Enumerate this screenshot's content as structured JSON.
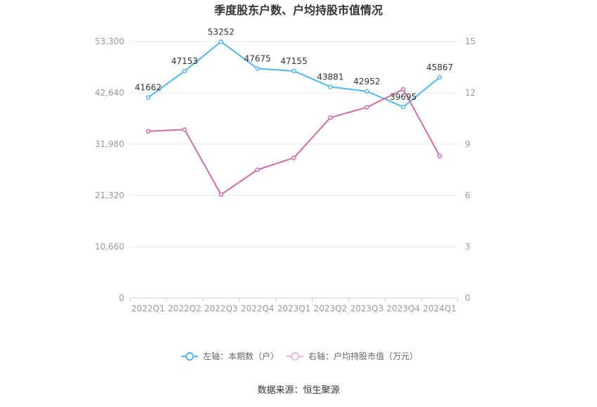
{
  "chart_data": {
    "type": "line",
    "title": "季度股东户数、户均持股市值情况",
    "categories": [
      "2022Q1",
      "2022Q2",
      "2022Q3",
      "2022Q4",
      "2023Q1",
      "2023Q2",
      "2023Q3",
      "2023Q4",
      "2024Q1"
    ],
    "left_axis": {
      "ylim": [
        0,
        53300
      ],
      "ticks": [
        0,
        10660,
        21320,
        31980,
        42640,
        53300
      ],
      "tick_labels": [
        "0",
        "10,660",
        "21,320",
        "31,980",
        "42,640",
        "53,300"
      ]
    },
    "right_axis": {
      "ylim": [
        0,
        15
      ],
      "ticks": [
        0,
        3,
        6,
        9,
        12,
        15
      ],
      "tick_labels": [
        "0",
        "3",
        "6",
        "9",
        "12",
        "15"
      ]
    },
    "series": [
      {
        "name": "左轴：本期数（户）",
        "axis": "left",
        "color": "#4fb8ec",
        "values": [
          41662,
          47153,
          53252,
          47675,
          47155,
          43881,
          42952,
          39695,
          45867
        ],
        "labels": [
          "41662",
          "47153",
          "53252",
          "47675",
          "47155",
          "43881",
          "42952",
          "39695",
          "45867"
        ]
      },
      {
        "name": "右轴：户均持股市值（万元）",
        "axis": "right",
        "color": "#d46aa9",
        "values": [
          9.75,
          9.85,
          6.05,
          7.5,
          8.2,
          10.55,
          11.15,
          12.2,
          8.3
        ]
      }
    ],
    "grid": true,
    "legend_position": "bottom",
    "source": "数据来源：恒生聚源"
  }
}
